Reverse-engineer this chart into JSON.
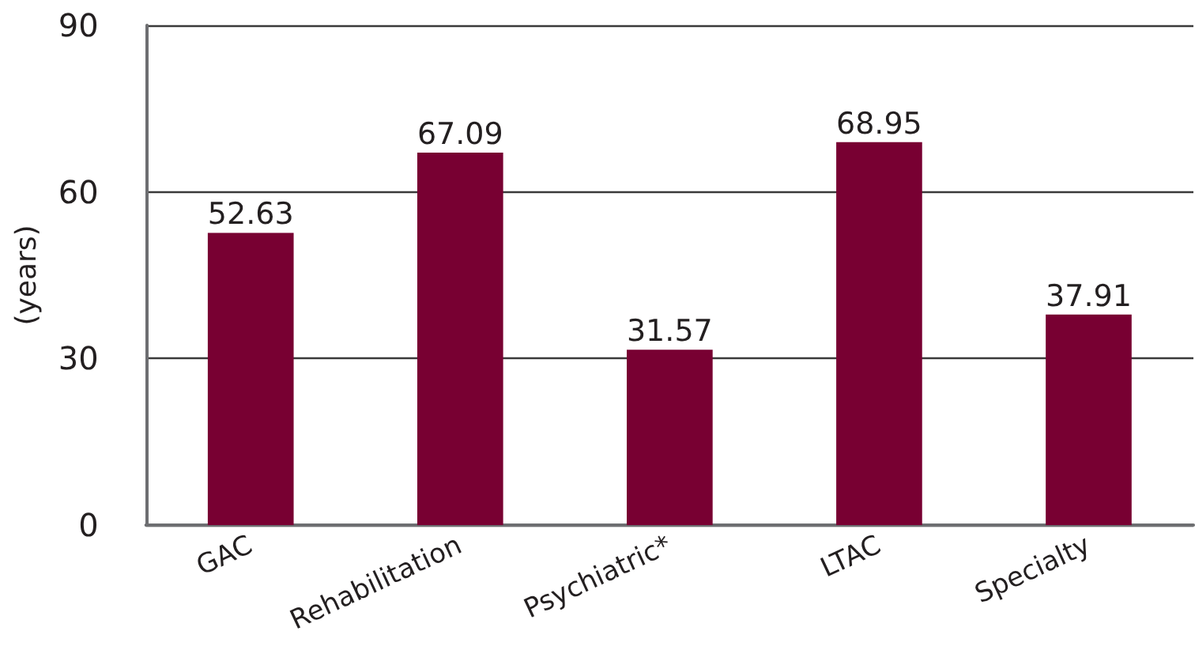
{
  "chart_data": {
    "type": "bar",
    "ylabel": "(years)",
    "categories": [
      "GAC",
      "Rehabilitation",
      "Psychiatric*",
      "LTAC",
      "Specialty"
    ],
    "values": [
      52.63,
      67.09,
      31.57,
      68.95,
      37.91
    ],
    "color": "#780032",
    "ylim": [
      0,
      90
    ],
    "yticks": [
      0,
      30,
      60,
      90
    ],
    "grid": "y",
    "data_labels": true
  }
}
